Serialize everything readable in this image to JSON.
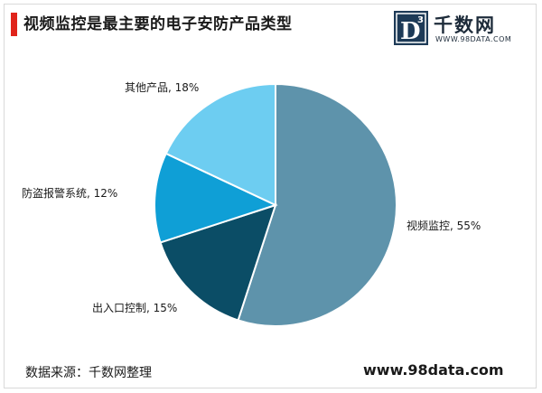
{
  "header": {
    "title": "视频监控是最主要的电子安防产品类型"
  },
  "logo": {
    "mark_letter": "D",
    "mark_superscript": "3",
    "name": "千数网",
    "url": "WWW.98DATA.COM"
  },
  "footer": {
    "source": "数据来源：千数网整理",
    "site": "www.98data.com"
  },
  "chart_data": {
    "type": "pie",
    "title": "视频监控是最主要的电子安防产品类型",
    "slices": [
      {
        "name": "视频监控",
        "value": 55,
        "label": "视频监控, 55%",
        "color": "#5e93ab"
      },
      {
        "name": "出入口控制",
        "value": 15,
        "label": "出入口控制, 15%",
        "color": "#0b4d66"
      },
      {
        "name": "防盗报警系统",
        "value": 12,
        "label": "防盗报警系统, 12%",
        "color": "#0f9fd6"
      },
      {
        "name": "其他产品",
        "value": 18,
        "label": "其他产品, 18%",
        "color": "#6dcdf1"
      }
    ],
    "start": "12 o'clock",
    "direction": "clockwise",
    "legend": "none"
  }
}
